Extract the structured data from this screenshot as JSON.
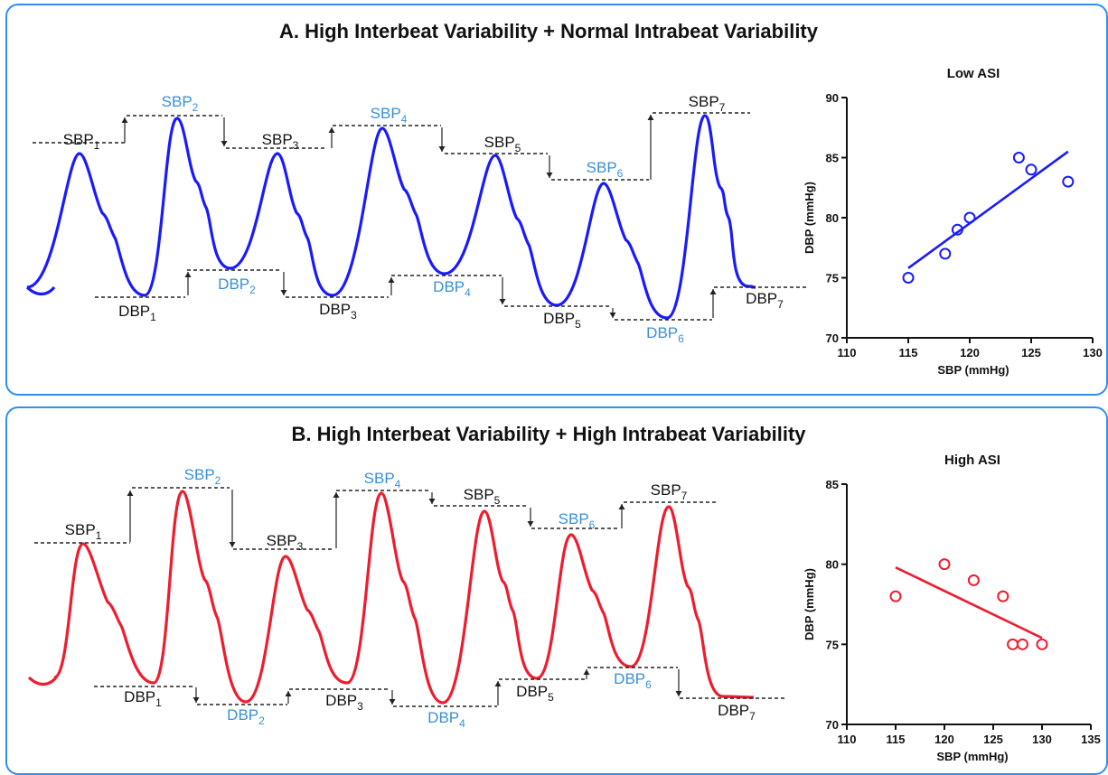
{
  "panels": [
    {
      "id": "A",
      "title": "A. High Interbeat Variability + Normal Intrabeat Variability",
      "color": "#1a1aff",
      "sbp_labels": [
        {
          "base": "SBP",
          "sub": "1",
          "color": "#111111"
        },
        {
          "base": "SBP",
          "sub": "2",
          "color": "#3a8fd6"
        },
        {
          "base": "SBP",
          "sub": "3",
          "color": "#111111"
        },
        {
          "base": "SBP",
          "sub": "4",
          "color": "#3a8fd6"
        },
        {
          "base": "SBP",
          "sub": "5",
          "color": "#111111"
        },
        {
          "base": "SBP",
          "sub": "6",
          "color": "#3a8fd6"
        },
        {
          "base": "SBP",
          "sub": "7",
          "color": "#111111"
        }
      ],
      "dbp_labels": [
        {
          "base": "DBP",
          "sub": "1",
          "color": "#111111"
        },
        {
          "base": "DBP",
          "sub": "2",
          "color": "#3a8fd6"
        },
        {
          "base": "DBP",
          "sub": "3",
          "color": "#111111"
        },
        {
          "base": "DBP",
          "sub": "4",
          "color": "#3a8fd6"
        },
        {
          "base": "DBP",
          "sub": "5",
          "color": "#111111"
        },
        {
          "base": "DBP",
          "sub": "6",
          "color": "#3a8fd6"
        },
        {
          "base": "DBP",
          "sub": "7",
          "color": "#111111"
        }
      ]
    },
    {
      "id": "B",
      "title": "B. High Interbeat Variability + High Intrabeat Variability",
      "color": "#ee1c2e",
      "sbp_labels": [
        {
          "base": "SBP",
          "sub": "1",
          "color": "#111111"
        },
        {
          "base": "SBP",
          "sub": "2",
          "color": "#3a8fd6"
        },
        {
          "base": "SBP",
          "sub": "3",
          "color": "#111111"
        },
        {
          "base": "SBP",
          "sub": "4",
          "color": "#3a8fd6"
        },
        {
          "base": "SBP",
          "sub": "5",
          "color": "#111111"
        },
        {
          "base": "SBP",
          "sub": "6",
          "color": "#3a8fd6"
        },
        {
          "base": "SBP",
          "sub": "7",
          "color": "#111111"
        }
      ],
      "dbp_labels": [
        {
          "base": "DBP",
          "sub": "1",
          "color": "#111111"
        },
        {
          "base": "DBP",
          "sub": "2",
          "color": "#3a8fd6"
        },
        {
          "base": "DBP",
          "sub": "3",
          "color": "#111111"
        },
        {
          "base": "DBP",
          "sub": "4",
          "color": "#3a8fd6"
        },
        {
          "base": "DBP",
          "sub": "5",
          "color": "#111111"
        },
        {
          "base": "DBP",
          "sub": "6",
          "color": "#3a8fd6"
        },
        {
          "base": "DBP",
          "sub": "7",
          "color": "#111111"
        }
      ]
    }
  ],
  "chart_data": [
    {
      "type": "scatter",
      "title": "Low ASI",
      "xlabel": "SBP (mmHg)",
      "ylabel": "DBP (mmHg)",
      "xlim": [
        110,
        130
      ],
      "ylim": [
        70,
        90
      ],
      "xticks": [
        110,
        115,
        120,
        125,
        130
      ],
      "yticks": [
        70,
        75,
        80,
        85,
        90
      ],
      "color": "#1a1aff",
      "points": [
        [
          115,
          75
        ],
        [
          118,
          77
        ],
        [
          119,
          79
        ],
        [
          120,
          80
        ],
        [
          124,
          85
        ],
        [
          125,
          84
        ],
        [
          128,
          83
        ]
      ],
      "fit": [
        [
          115,
          75.8
        ],
        [
          128,
          85.5
        ]
      ],
      "grid": false
    },
    {
      "type": "scatter",
      "title": "High ASI",
      "xlabel": "SBP (mmHg)",
      "ylabel": "DBP (mmHg)",
      "xlim": [
        110,
        135
      ],
      "ylim": [
        70,
        85
      ],
      "xticks": [
        110,
        115,
        120,
        125,
        130,
        135
      ],
      "yticks": [
        70,
        75,
        80,
        85
      ],
      "color": "#ee1c2e",
      "points": [
        [
          115,
          78
        ],
        [
          120,
          80
        ],
        [
          123,
          79
        ],
        [
          126,
          78
        ],
        [
          127,
          75
        ],
        [
          128,
          75
        ],
        [
          130,
          75
        ]
      ],
      "fit": [
        [
          115,
          79.8
        ],
        [
          130,
          75.4
        ]
      ],
      "grid": false
    }
  ]
}
